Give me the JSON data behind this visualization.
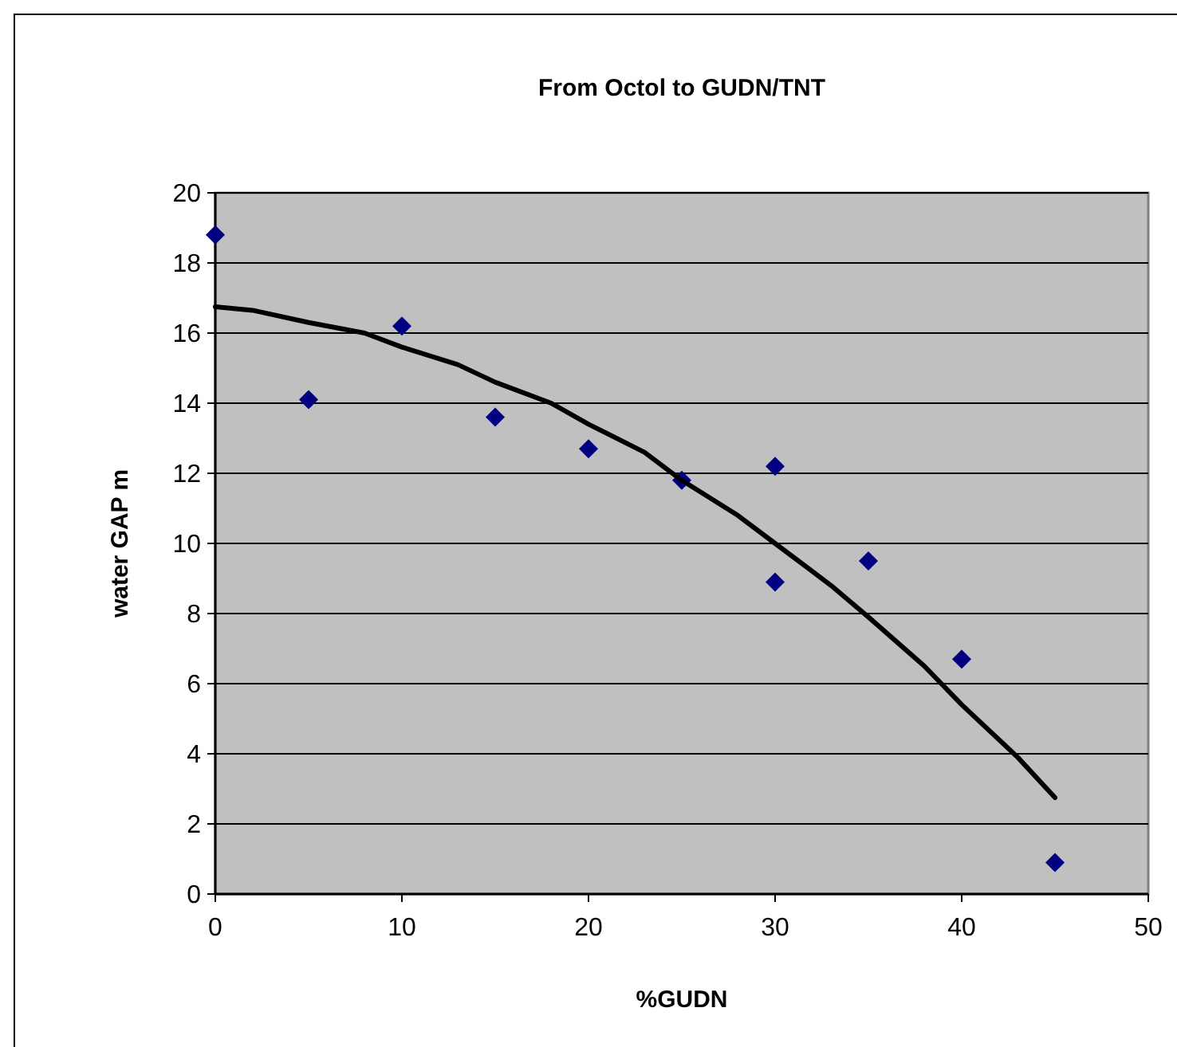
{
  "chart_data": {
    "type": "scatter",
    "title": "From Octol to GUDN/TNT",
    "xlabel": "%GUDN",
    "ylabel": "water GAP m",
    "xlim": [
      0,
      50
    ],
    "xticks": [
      0,
      10,
      20,
      30,
      40,
      50
    ],
    "ylim": [
      0,
      20
    ],
    "yticks": [
      0,
      2,
      4,
      6,
      8,
      10,
      12,
      14,
      16,
      18,
      20
    ],
    "grid": "y",
    "series": [
      {
        "marker": "diamond",
        "color": "#000080",
        "x": [
          0,
          5,
          10,
          15,
          20,
          25,
          30,
          30,
          35,
          40,
          45
        ],
        "values": [
          18.8,
          14.1,
          16.2,
          13.6,
          12.7,
          11.8,
          12.2,
          8.9,
          9.5,
          6.7,
          0.9
        ]
      },
      {
        "type": "line",
        "marker": "none",
        "line_style": "solid",
        "color": "#000000",
        "x": [
          0,
          2,
          5,
          8,
          10,
          13,
          15,
          18,
          20,
          23,
          25,
          28,
          30,
          33,
          35,
          38,
          40,
          43,
          45
        ],
        "values": [
          16.75,
          16.65,
          16.3,
          16.0,
          15.6,
          15.1,
          14.6,
          14.0,
          13.4,
          12.6,
          11.8,
          10.8,
          10.0,
          8.8,
          7.9,
          6.5,
          5.4,
          3.9,
          2.75
        ]
      }
    ]
  }
}
